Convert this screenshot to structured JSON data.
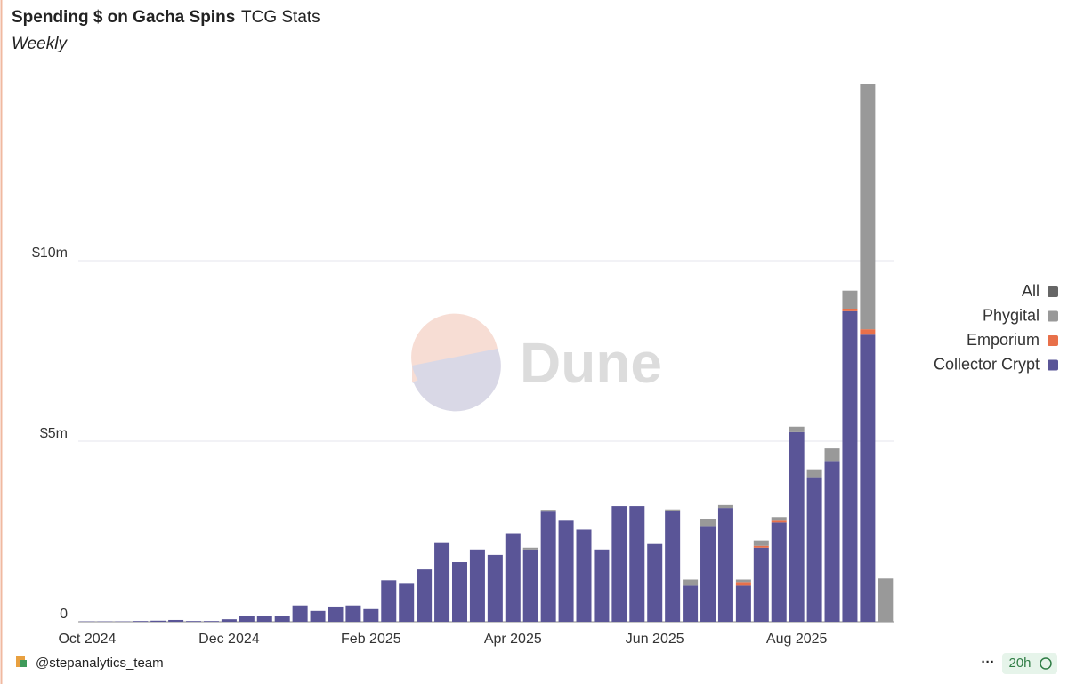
{
  "chart_data": {
    "type": "stacked_bar",
    "title": "Spending $ on Gacha Spins",
    "source": "TCG Stats",
    "subtitle": "Weekly",
    "watermark": "Dune",
    "author": "@stepanalytics_team",
    "menu": "···",
    "freshness": "20h",
    "categories": [
      "Oct 2024",
      null,
      null,
      null,
      null,
      null,
      null,
      null,
      "Dec 2024",
      null,
      null,
      null,
      null,
      null,
      null,
      null,
      "Feb 2025",
      null,
      null,
      null,
      null,
      null,
      null,
      null,
      "Apr 2025",
      null,
      null,
      null,
      null,
      null,
      null,
      null,
      "Jun 2025",
      null,
      null,
      null,
      null,
      null,
      null,
      null,
      "Aug 2025",
      null,
      null,
      null,
      null,
      null
    ],
    "series": [
      {
        "name": "All",
        "color": "#666666",
        "values": [
          null,
          null,
          null,
          null,
          null,
          null,
          null,
          null,
          null,
          null,
          null,
          null,
          null,
          null,
          null,
          null,
          null,
          null,
          null,
          null,
          null,
          null,
          null,
          null,
          null,
          null,
          null,
          null,
          null,
          null,
          null,
          null,
          null,
          null,
          null,
          null,
          null,
          null,
          null,
          null,
          null,
          null,
          null,
          null,
          null,
          null
        ]
      },
      {
        "name": "Phygital",
        "color": "#999999",
        "values": [
          0,
          0,
          0,
          0,
          0,
          0,
          0,
          0,
          0,
          0,
          0,
          0,
          0,
          0,
          0,
          0,
          0,
          0,
          0,
          0,
          0,
          0,
          0,
          0,
          0,
          50000,
          50000,
          0,
          0,
          0,
          0,
          0,
          0,
          30000,
          170000,
          200000,
          80000,
          70000,
          150000,
          100000,
          150000,
          220000,
          350000,
          500000,
          6800000,
          1200000
        ]
      },
      {
        "name": "Emporium",
        "color": "#e8704a",
        "values": [
          0,
          0,
          0,
          0,
          0,
          0,
          0,
          0,
          0,
          0,
          0,
          0,
          0,
          0,
          0,
          0,
          0,
          0,
          0,
          0,
          0,
          0,
          0,
          0,
          0,
          0,
          0,
          0,
          0,
          0,
          0,
          0,
          0,
          0,
          0,
          0,
          0,
          100000,
          50000,
          50000,
          0,
          0,
          0,
          70000,
          150000,
          0
        ]
      },
      {
        "name": "Collector Crypt",
        "color": "#5a5597",
        "values": [
          10000,
          10000,
          10000,
          20000,
          30000,
          50000,
          20000,
          20000,
          70000,
          150000,
          150000,
          150000,
          450000,
          300000,
          420000,
          450000,
          350000,
          1150000,
          1050000,
          1450000,
          2200000,
          1650000,
          2000000,
          1850000,
          2450000,
          2000000,
          3050000,
          2800000,
          2550000,
          2000000,
          3200000,
          3200000,
          2150000,
          3080000,
          1000000,
          2650000,
          3150000,
          1000000,
          2050000,
          2750000,
          5250000,
          4000000,
          4450000,
          8600000,
          7950000,
          0
        ]
      }
    ],
    "ylim": [
      0,
      15000000
    ],
    "yticks": [
      0,
      {
        "value": 5000000,
        "label": "$5m"
      },
      {
        "value": 10000000,
        "label": "$10m"
      }
    ],
    "grid": true,
    "legend": "right"
  }
}
